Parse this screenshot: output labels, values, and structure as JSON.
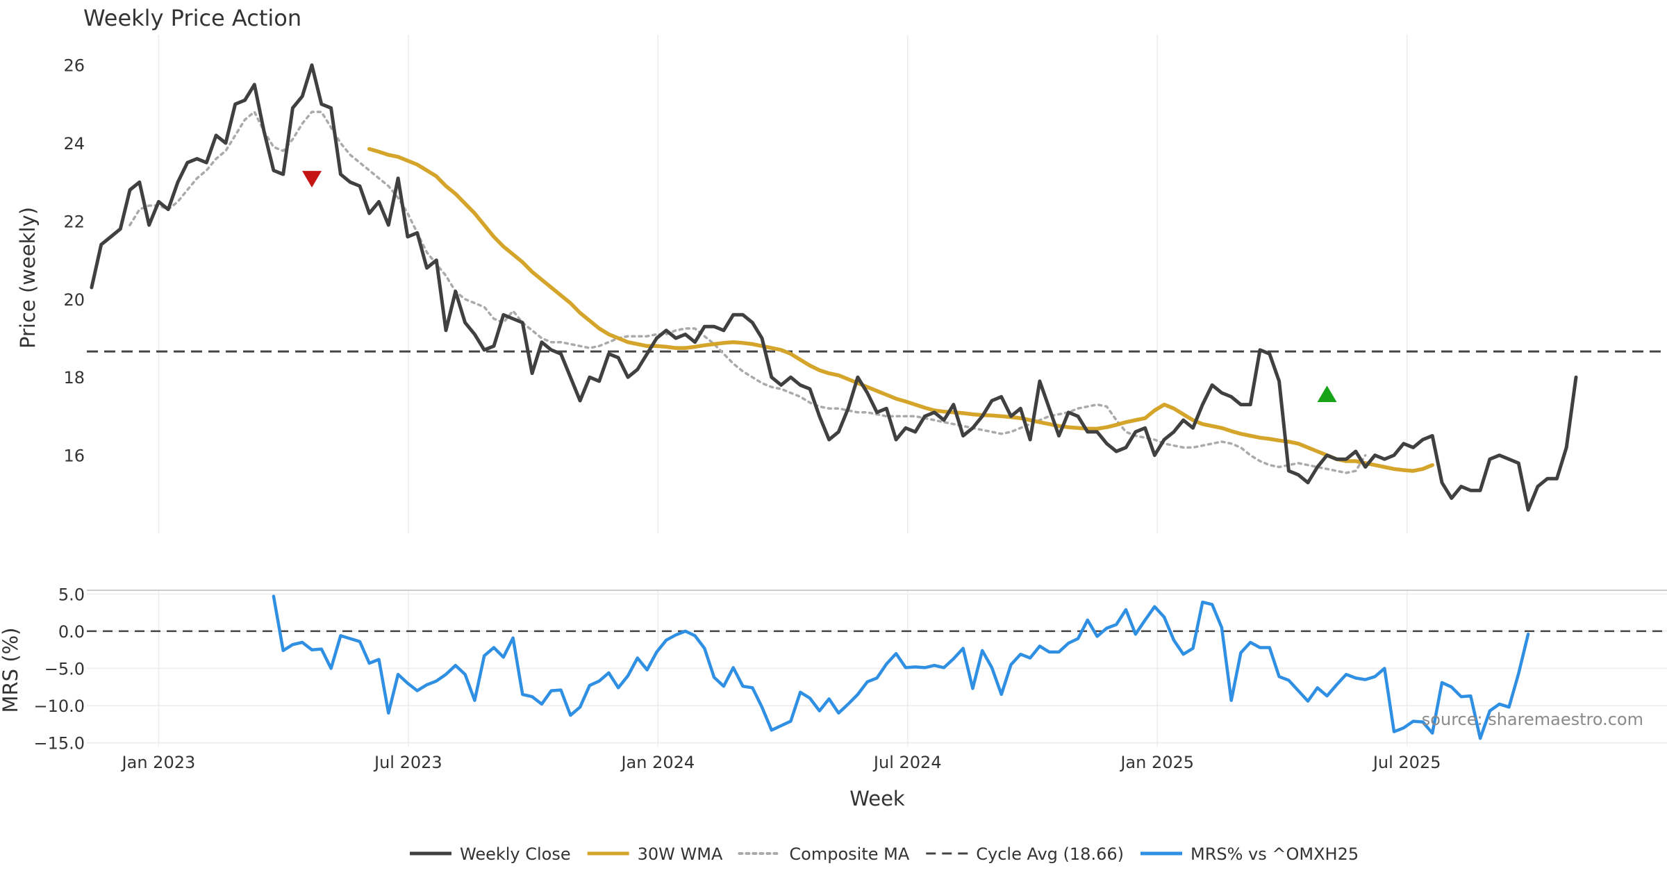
{
  "chart_data": {
    "type": "line",
    "title": "Weekly Price Action",
    "xlabel": "Week",
    "source": "source: sharemaestro.com",
    "x_ticks": [
      "Jan 2023",
      "Jul 2023",
      "Jan 2024",
      "Jul 2024",
      "Jan 2025",
      "Jul 2025"
    ],
    "colors": {
      "close": "#404040",
      "wma": "#d4a52a",
      "composite": "#aaaaaa",
      "cycle": "#444444",
      "mrs": "#2e8fe3",
      "sell": "#c41414",
      "buy": "#19a319",
      "grid": "#ececec"
    },
    "price_panel": {
      "ylabel": "Price (weekly)",
      "ylim": [
        14,
        26.6
      ],
      "y_ticks": [
        16,
        18,
        20,
        22,
        24,
        26
      ],
      "x_range_weeks": [
        -7.5,
        157.5
      ],
      "cycle_avg": 18.66,
      "series": [
        {
          "name": "Weekly Close",
          "start_week": -7,
          "values": [
            20.3,
            21.4,
            21.6,
            21.8,
            22.8,
            23.0,
            21.9,
            22.5,
            22.3,
            23.0,
            23.5,
            23.6,
            23.5,
            24.2,
            24.0,
            25.0,
            25.1,
            25.5,
            24.3,
            23.3,
            23.2,
            24.9,
            25.2,
            26.0,
            25.0,
            24.9,
            23.2,
            23.0,
            22.9,
            22.2,
            22.5,
            21.9,
            23.1,
            21.6,
            21.7,
            20.8,
            21.0,
            19.2,
            20.2,
            19.4,
            19.1,
            18.7,
            18.8,
            19.6,
            19.5,
            19.4,
            18.1,
            18.9,
            18.7,
            18.6,
            18.0,
            17.4,
            18.0,
            17.9,
            18.6,
            18.5,
            18.0,
            18.2,
            18.6,
            19.0,
            19.2,
            19.0,
            19.1,
            18.9,
            19.3,
            19.3,
            19.2,
            19.6,
            19.6,
            19.4,
            19.0,
            18.0,
            17.8,
            18.0,
            17.8,
            17.7,
            17.0,
            16.4,
            16.6,
            17.2,
            18.0,
            17.6,
            17.1,
            17.2,
            16.4,
            16.7,
            16.6,
            17.0,
            17.1,
            16.9,
            17.3,
            16.5,
            16.7,
            17.0,
            17.4,
            17.5,
            17.0,
            17.2,
            16.4,
            17.9,
            17.2,
            16.5,
            17.1,
            17.0,
            16.6,
            16.6,
            16.3,
            16.1,
            16.2,
            16.6,
            16.7,
            16.0,
            16.4,
            16.6,
            16.9,
            16.7,
            17.3,
            17.8,
            17.6,
            17.5,
            17.3,
            17.3,
            18.7,
            18.6,
            17.9,
            15.6,
            15.5,
            15.3,
            15.7,
            16.0,
            15.9,
            15.9,
            16.1,
            15.7,
            16.0,
            15.9,
            16.0,
            16.3,
            16.2,
            16.4,
            16.5,
            15.3,
            14.9,
            15.2,
            15.1,
            15.1,
            15.9,
            16.0,
            15.9,
            15.8,
            14.6,
            15.2,
            15.4,
            15.4,
            16.2,
            18.0
          ]
        },
        {
          "name": "30W WMA",
          "start_week": 22,
          "values": [
            23.85,
            23.78,
            23.7,
            23.65,
            23.55,
            23.45,
            23.3,
            23.15,
            22.9,
            22.7,
            22.45,
            22.2,
            21.9,
            21.6,
            21.35,
            21.15,
            20.95,
            20.7,
            20.5,
            20.3,
            20.1,
            19.9,
            19.65,
            19.45,
            19.25,
            19.1,
            19.0,
            18.9,
            18.85,
            18.8,
            18.8,
            18.78,
            18.75,
            18.75,
            18.78,
            18.82,
            18.85,
            18.88,
            18.9,
            18.88,
            18.85,
            18.8,
            18.75,
            18.7,
            18.6,
            18.45,
            18.3,
            18.18,
            18.1,
            18.05,
            17.95,
            17.85,
            17.75,
            17.65,
            17.55,
            17.45,
            17.38,
            17.3,
            17.22,
            17.15,
            17.12,
            17.1,
            17.08,
            17.05,
            17.03,
            17.02,
            17.0,
            16.98,
            16.95,
            16.9,
            16.85,
            16.8,
            16.75,
            16.72,
            16.7,
            16.68,
            16.68,
            16.72,
            16.78,
            16.85,
            16.9,
            16.95,
            17.15,
            17.3,
            17.2,
            17.05,
            16.9,
            16.8,
            16.75,
            16.7,
            16.62,
            16.55,
            16.5,
            16.45,
            16.42,
            16.38,
            16.35,
            16.3,
            16.2,
            16.1,
            16.0,
            15.9,
            15.85,
            15.85,
            15.8,
            15.75,
            15.7,
            15.65,
            15.62,
            15.6,
            15.65,
            15.75
          ]
        },
        {
          "name": "Composite MA",
          "start_week": -3,
          "values": [
            21.9,
            22.3,
            22.4,
            22.4,
            22.3,
            22.5,
            22.8,
            23.1,
            23.3,
            23.6,
            23.8,
            24.2,
            24.6,
            24.8,
            24.3,
            23.9,
            23.8,
            24.1,
            24.5,
            24.8,
            24.8,
            24.4,
            24.0,
            23.7,
            23.5,
            23.3,
            23.1,
            22.9,
            22.6,
            22.2,
            21.7,
            21.2,
            20.9,
            20.6,
            20.2,
            20.0,
            19.9,
            19.8,
            19.5,
            19.4,
            19.7,
            19.4,
            19.2,
            19.0,
            18.9,
            18.9,
            18.85,
            18.8,
            18.75,
            18.8,
            18.9,
            19.0,
            19.05,
            19.05,
            19.05,
            19.1,
            19.1,
            19.2,
            19.25,
            19.25,
            19.05,
            18.85,
            18.6,
            18.35,
            18.15,
            18.0,
            17.85,
            17.75,
            17.7,
            17.6,
            17.5,
            17.35,
            17.25,
            17.2,
            17.2,
            17.15,
            17.1,
            17.1,
            17.05,
            17.0,
            17.0,
            17.0,
            17.0,
            16.95,
            16.9,
            16.85,
            16.8,
            16.75,
            16.7,
            16.65,
            16.6,
            16.55,
            16.6,
            16.7,
            16.8,
            16.9,
            17.0,
            17.05,
            17.1,
            17.2,
            17.25,
            17.3,
            17.25,
            16.9,
            16.6,
            16.5,
            16.45,
            16.4,
            16.3,
            16.25,
            16.2,
            16.2,
            16.25,
            16.3,
            16.35,
            16.3,
            16.2,
            16.0,
            15.85,
            15.75,
            15.7,
            15.75,
            15.8,
            15.75,
            15.7,
            15.65,
            15.6,
            15.55,
            15.6,
            16.0
          ]
        }
      ],
      "markers": [
        {
          "type": "sell",
          "shape": "down-triangle",
          "week": 16,
          "value": 23.1
        },
        {
          "type": "buy",
          "shape": "up-triangle",
          "week": 122,
          "value": 17.55
        }
      ]
    },
    "mrs_panel": {
      "ylabel": "MRS (%)",
      "ylim": [
        -15.5,
        5.5
      ],
      "y_ticks": [
        5.0,
        0.0,
        -5.0,
        -10.0,
        -15.0
      ],
      "y_tick_labels": [
        "5.0",
        "0.0",
        "−5.0",
        "−10.0",
        "−15.0"
      ],
      "series": [
        {
          "name": "MRS% vs ^OMXH25",
          "start_week": 12,
          "values": [
            4.7,
            -2.6,
            -1.8,
            -1.5,
            -2.5,
            -2.4,
            -5.0,
            -0.6,
            -1.0,
            -1.4,
            -4.3,
            -3.8,
            -11.0,
            -5.8,
            -7.0,
            -8.0,
            -7.2,
            -6.7,
            -5.8,
            -4.6,
            -5.8,
            -9.3,
            -3.3,
            -2.2,
            -3.5,
            -0.9,
            -8.5,
            -8.8,
            -9.8,
            -8.0,
            -7.9,
            -11.3,
            -10.2,
            -7.3,
            -6.7,
            -5.6,
            -7.6,
            -6.0,
            -3.6,
            -5.2,
            -2.8,
            -1.2,
            -0.5,
            0.0,
            -0.6,
            -2.3,
            -6.2,
            -7.4,
            -4.9,
            -7.4,
            -7.6,
            -10.2,
            -13.3,
            -12.7,
            -12.1,
            -8.2,
            -9.0,
            -10.7,
            -9.1,
            -11.0,
            -9.8,
            -8.5,
            -6.8,
            -6.3,
            -4.4,
            -3.0,
            -4.9,
            -4.8,
            -4.9,
            -4.6,
            -4.9,
            -3.7,
            -2.3,
            -7.7,
            -2.6,
            -4.9,
            -8.5,
            -4.5,
            -3.1,
            -3.6,
            -2.0,
            -2.8,
            -2.8,
            -1.6,
            -1.0,
            1.5,
            -0.7,
            0.4,
            0.9,
            2.9,
            -0.4,
            1.5,
            3.3,
            1.9,
            -1.2,
            -3.1,
            -2.3,
            3.9,
            3.6,
            0.5,
            -9.3,
            -2.9,
            -1.5,
            -2.2,
            -2.2,
            -6.1,
            -6.6,
            -8.0,
            -9.4,
            -7.6,
            -8.7,
            -7.2,
            -5.8,
            -6.3,
            -6.5,
            -6.1,
            -5.0,
            -13.5,
            -13.0,
            -12.1,
            -12.2,
            -13.7,
            -6.9,
            -7.5,
            -8.8,
            -8.7,
            -14.4,
            -10.7,
            -9.8,
            -10.2,
            -5.7,
            -0.4
          ]
        }
      ],
      "zero_line": 0.0
    },
    "legend": {
      "placement": "bottom-center",
      "entries": [
        {
          "label": "Weekly Close",
          "style": "solid",
          "color": "#404040"
        },
        {
          "label": "30W WMA",
          "style": "solid",
          "color": "#d4a52a"
        },
        {
          "label": "Composite MA",
          "style": "dotted",
          "color": "#aaaaaa"
        },
        {
          "label": "Cycle Avg (18.66)",
          "style": "dashed",
          "color": "#444444"
        },
        {
          "label": "MRS% vs ^OMXH25",
          "style": "solid",
          "color": "#2e8fe3"
        }
      ]
    }
  }
}
